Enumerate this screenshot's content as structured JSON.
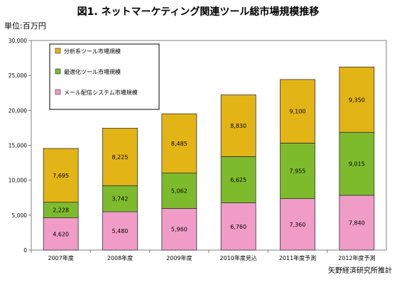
{
  "chart_data": {
    "type": "bar",
    "stacked": true,
    "title": "図1. ネットマーケティング関連ツール総市場規模推移",
    "unit_label": "単位:百万円",
    "source": "矢野経済研究所推計",
    "categories": [
      "2007年度",
      "2008年度",
      "2009年度",
      "2010年度見込",
      "2011年度予測",
      "2012年度予測"
    ],
    "series": [
      {
        "name": "メール配信システム市場規模",
        "color": "#f19cc7",
        "values": [
          4620,
          5480,
          5960,
          6760,
          7360,
          7840
        ]
      },
      {
        "name": "最適化ツール市場規模",
        "color": "#7dbb2d",
        "values": [
          2228,
          3742,
          5062,
          6625,
          7955,
          9015
        ]
      },
      {
        "name": "分析系ツール市場規模",
        "color": "#e3b416",
        "values": [
          7695,
          8225,
          8485,
          8830,
          9100,
          9350
        ]
      }
    ],
    "data_labels": [
      [
        "4,620",
        "5,480",
        "5,960",
        "6,760",
        "7,360",
        "7,840"
      ],
      [
        "2,228",
        "3,742",
        "5,062",
        "6,625",
        "7,955",
        "9,015"
      ],
      [
        "7,695",
        "8,225",
        "8,485",
        "8,830",
        "9,100",
        "9,350"
      ]
    ],
    "ylim": [
      0,
      30000
    ],
    "yticks": [
      0,
      5000,
      10000,
      15000,
      20000,
      25000,
      30000
    ],
    "ytick_labels": [
      "0",
      "5,000",
      "10,000",
      "15,000",
      "20,000",
      "25,000",
      "30,000"
    ],
    "legend_order": [
      2,
      1,
      0
    ],
    "legend_position": "top-left",
    "grid": false
  }
}
